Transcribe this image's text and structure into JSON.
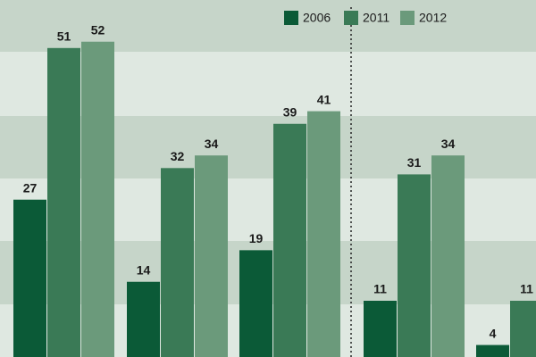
{
  "chart_data": {
    "type": "bar",
    "categories": [
      null,
      null,
      null,
      null,
      null
    ],
    "series": [
      {
        "name": "2006",
        "color": "#0b5a37",
        "values": [
          27,
          14,
          19,
          11,
          4
        ]
      },
      {
        "name": "2011",
        "color": "#3a7a56",
        "values": [
          51,
          32,
          39,
          31,
          11
        ]
      },
      {
        "name": "2012",
        "color": "#6b9a7b",
        "values": [
          52,
          34,
          41,
          34,
          null
        ]
      }
    ],
    "ylim": [
      2.1,
      58.6
    ]
  }
}
